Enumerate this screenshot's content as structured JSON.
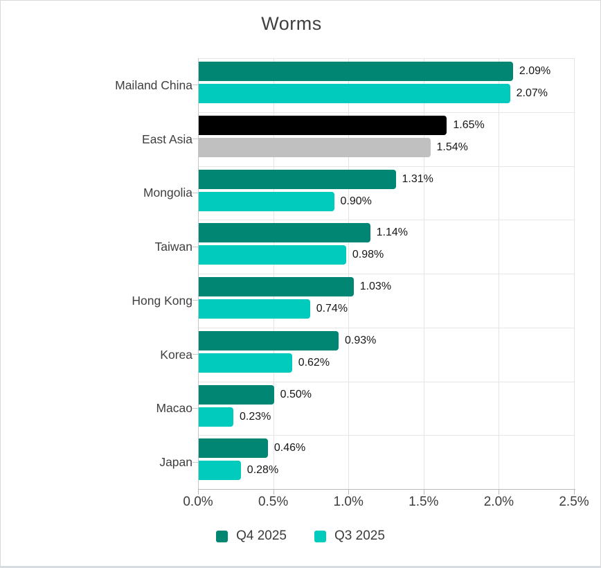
{
  "chart_data": {
    "type": "bar",
    "orientation": "horizontal",
    "title": "Worms",
    "categories": [
      "Mailand China",
      "East Asia",
      "Mongolia",
      "Taiwan",
      "Hong Kong",
      "Korea",
      "Macao",
      "Japan"
    ],
    "series": [
      {
        "name": "Q4 2025",
        "color": "#008672",
        "values": [
          2.09,
          1.65,
          1.31,
          1.14,
          1.03,
          0.93,
          0.5,
          0.46
        ],
        "labels": [
          "2.09%",
          "1.65%",
          "1.31%",
          "1.14%",
          "1.03%",
          "0.93%",
          "0.50%",
          "0.46%"
        ]
      },
      {
        "name": "Q3 2025",
        "color": "#00CBBD",
        "values": [
          2.07,
          1.54,
          0.9,
          0.98,
          0.74,
          0.62,
          0.23,
          0.28
        ],
        "labels": [
          "2.07%",
          "1.54%",
          "0.90%",
          "0.98%",
          "0.74%",
          "0.62%",
          "0.23%",
          "0.28%"
        ]
      }
    ],
    "highlight": {
      "category": "East Asia",
      "series_colors": [
        "#000000",
        "#C0C0C0"
      ]
    },
    "x_axis": {
      "min": 0,
      "max": 2.5,
      "tick_labels": [
        "0.0%",
        "0.5%",
        "1.0%",
        "1.5%",
        "2.0%",
        "2.5%"
      ]
    },
    "legend": {
      "position": "bottom",
      "items": [
        {
          "label": "Q4 2025",
          "color": "#008672"
        },
        {
          "label": "Q3 2025",
          "color": "#00CBBD"
        }
      ]
    },
    "grid": true
  }
}
